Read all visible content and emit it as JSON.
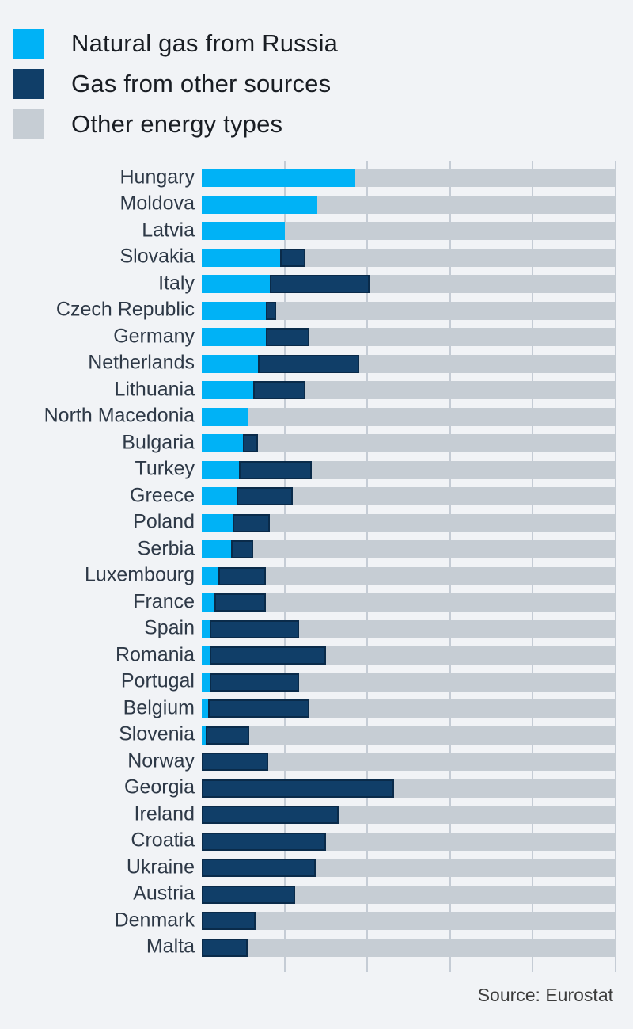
{
  "page": {
    "background": "#f1f3f6"
  },
  "legend": {
    "items": [
      {
        "key": "russia",
        "label": "Natural gas from Russia",
        "color": "#00b2f6"
      },
      {
        "key": "other_gas",
        "label": "Gas from other sources",
        "color": "#103e68"
      },
      {
        "key": "other_energy",
        "label": "Other energy types",
        "color": "#c6cdd4"
      }
    ]
  },
  "chart_data": {
    "type": "bar",
    "orientation": "horizontal",
    "stacked": true,
    "unit": "percent of total energy mix",
    "xlim": [
      0,
      100
    ],
    "gridlines_percent": [
      20,
      40,
      60,
      80,
      100
    ],
    "grid": true,
    "legend_position": "top-left",
    "categories": [
      "Hungary",
      "Moldova",
      "Latvia",
      "Slovakia",
      "Italy",
      "Czech Republic",
      "Germany",
      "Netherlands",
      "Lithuania",
      "North Macedonia",
      "Bulgaria",
      "Turkey",
      "Greece",
      "Poland",
      "Serbia",
      "Luxembourg",
      "France",
      "Spain",
      "Romania",
      "Portugal",
      "Belgium",
      "Slovenia",
      "Norway",
      "Georgia",
      "Ireland",
      "Croatia",
      "Ukraine",
      "Austria",
      "Denmark",
      "Malta"
    ],
    "series": [
      {
        "name": "Natural gas from Russia",
        "color": "#00b2f6",
        "values": [
          37,
          28,
          20,
          19,
          16.5,
          15.5,
          15.5,
          13.5,
          12.5,
          11,
          10,
          9,
          8.5,
          7.5,
          7,
          4,
          3,
          2,
          2,
          2,
          1.5,
          1,
          0,
          0,
          0,
          0,
          0,
          0,
          0,
          0
        ]
      },
      {
        "name": "Gas from other sources",
        "color": "#103e68",
        "values": [
          0,
          0,
          0,
          6,
          24,
          2.5,
          10.5,
          24.5,
          12.5,
          0,
          3.5,
          17.5,
          13.5,
          9,
          5.5,
          11.5,
          12.5,
          21.5,
          28,
          21.5,
          24.5,
          10.5,
          16,
          46.5,
          33,
          30,
          27.5,
          22.5,
          13,
          11
        ]
      },
      {
        "name": "Other energy types",
        "color": "#c6cdd4",
        "values": [
          63,
          72,
          80,
          75,
          59.5,
          82,
          74,
          62,
          75,
          89,
          86.5,
          73.5,
          78,
          83.5,
          87.5,
          84.5,
          84.5,
          76.5,
          70,
          76.5,
          74,
          88.5,
          84,
          53.5,
          67,
          70,
          72.5,
          77.5,
          87,
          89
        ]
      }
    ]
  },
  "source": {
    "label": "Source: Eurostat"
  }
}
